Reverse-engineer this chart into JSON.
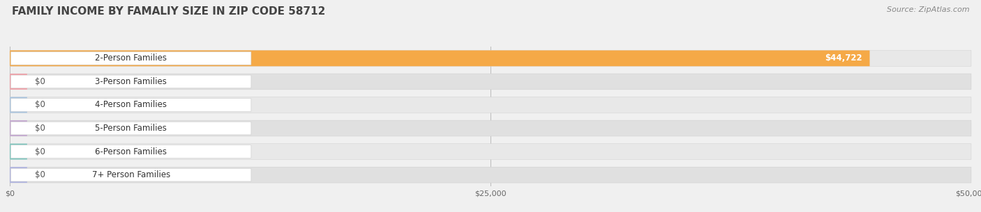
{
  "title": "FAMILY INCOME BY FAMALIY SIZE IN ZIP CODE 58712",
  "source": "Source: ZipAtlas.com",
  "categories": [
    "2-Person Families",
    "3-Person Families",
    "4-Person Families",
    "5-Person Families",
    "6-Person Families",
    "7+ Person Families"
  ],
  "values": [
    44722,
    0,
    0,
    0,
    0,
    0
  ],
  "bar_colors": [
    "#f5a947",
    "#f0a0a8",
    "#a8c4e0",
    "#c4a8d0",
    "#7ec8c0",
    "#b0b4e0"
  ],
  "value_labels": [
    "$44,722",
    "$0",
    "$0",
    "$0",
    "$0",
    "$0"
  ],
  "xlim": [
    0,
    50000
  ],
  "xticks": [
    0,
    25000,
    50000
  ],
  "xtick_labels": [
    "$0",
    "$25,000",
    "$50,000"
  ],
  "background_color": "#f0f0f0",
  "row_bg_color": "#e8e8e8",
  "row_bg_color_alt": "#dcdcdc",
  "pill_bg_color": "#e4e4e4",
  "title_fontsize": 11,
  "source_fontsize": 8,
  "label_fontsize": 8.5,
  "value_fontsize": 8.5,
  "bar_height": 0.68
}
